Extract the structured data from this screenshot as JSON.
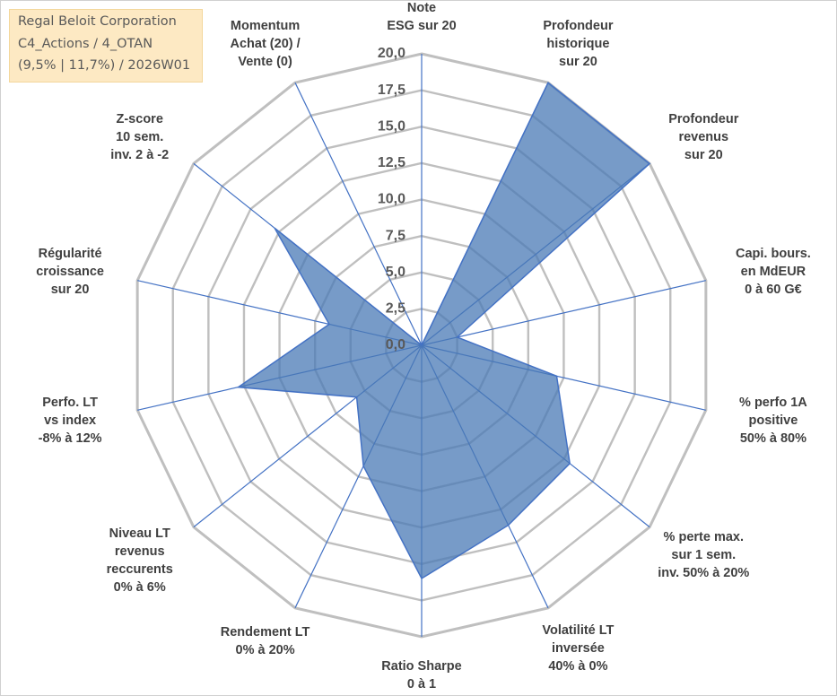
{
  "info": {
    "line1": "Regal Beloit Corporation",
    "line2": "C4_Actions / 4_OTAN",
    "line3": "(9,5% | 11,7%) / 2026W01"
  },
  "colors": {
    "fill": "#4a7ab5",
    "stroke": "#4472c4",
    "grid": "#bfbfbf",
    "spoke": "#4472c4",
    "info_bg": "#fde9c3"
  },
  "chart_data": {
    "type": "radar",
    "rmin": 0,
    "rmax": 20,
    "tick_step": 2.5,
    "tick_labels": [
      "0,0",
      "2,5",
      "5,0",
      "7,5",
      "10,0",
      "12,5",
      "15,0",
      "17,5",
      "20,0"
    ],
    "axes": [
      [
        "Note",
        "ESG sur 20"
      ],
      [
        "Profondeur",
        "historique",
        "sur 20"
      ],
      [
        "Profondeur",
        "revenus",
        "sur 20"
      ],
      [
        "Capi. bours.",
        "en MdEUR",
        "0 à 60 G€"
      ],
      [
        "% perfo 1A",
        "positive",
        "50% à 80%"
      ],
      [
        "% perte max.",
        "sur 1 sem.",
        "inv. 50% à 20%"
      ],
      [
        "Volatilité LT",
        "inversée",
        "40% à 0%"
      ],
      [
        "Ratio Sharpe",
        "0 à 1"
      ],
      [
        "Rendement LT",
        "0% à 20%"
      ],
      [
        "Niveau LT",
        "revenus",
        "reccurents",
        "0% à 6%"
      ],
      [
        "Perfo. LT",
        "vs index",
        "-8% à 12%"
      ],
      [
        "Régularité",
        "croissance",
        "sur 20"
      ],
      [
        "Z-score",
        "10 sem.",
        "inv. 2 à -2"
      ],
      [
        "Momentum",
        "Achat (20) /",
        "Vente (0)"
      ]
    ],
    "series": [
      {
        "values": [
          0,
          20,
          20,
          2.5,
          9.5,
          13,
          13.7,
          16,
          9.2,
          5.7,
          12.9,
          6.5,
          12.9,
          0
        ]
      }
    ]
  }
}
